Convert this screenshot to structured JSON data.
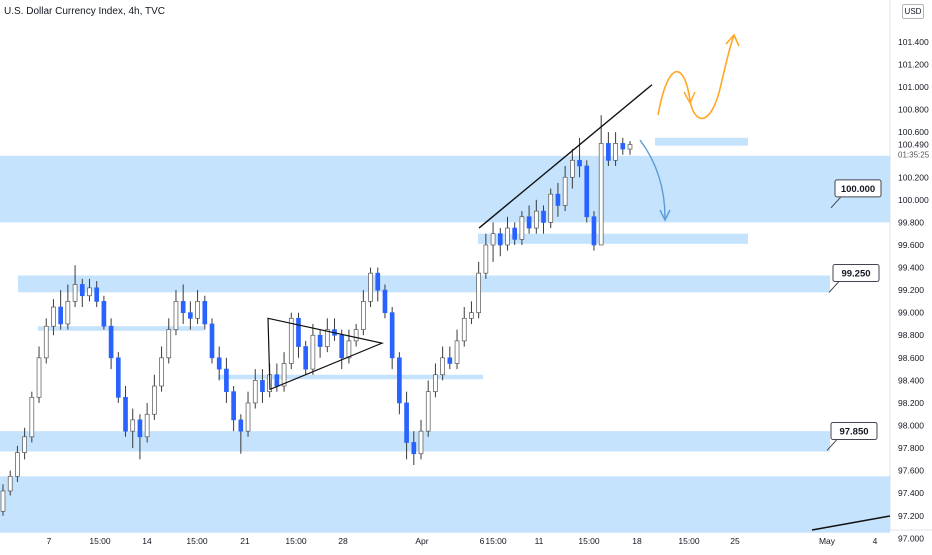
{
  "header": {
    "title": "U.S. Dollar Currency Index, 4h, TVC"
  },
  "currency_button": "USD",
  "price_box": {
    "price": "100.490",
    "countdown": "01:35:25"
  },
  "colors": {
    "up": "#26a69a",
    "down": "#2962ff",
    "candle_fill_up": "#ffffff",
    "zone_fill": "#bbdefb",
    "accent_orange": "#ffa726",
    "accent_blue": "#5b9bd5",
    "axis_text": "#131722"
  },
  "annotations": [
    {
      "label": "100.000",
      "price": 100.0
    },
    {
      "label": "99.250",
      "price": 99.25
    },
    {
      "label": "97.850",
      "price": 97.85
    }
  ],
  "chart_data": {
    "type": "candlestick",
    "title": "U.S. Dollar Currency Index, 4h, TVC",
    "y_ticks": [
      "97.000",
      "97.200",
      "97.400",
      "97.600",
      "97.800",
      "98.000",
      "98.200",
      "98.400",
      "98.600",
      "98.800",
      "99.000",
      "99.200",
      "99.400",
      "99.600",
      "99.800",
      "100.000",
      "100.200",
      "100.400",
      "100.600",
      "100.800",
      "101.000",
      "101.200",
      "101.400"
    ],
    "x_ticks": [
      "7",
      "15:00",
      "14",
      "15:00",
      "21",
      "15:00",
      "28",
      "Apr",
      "6",
      "15:00",
      "11",
      "15:00",
      "18",
      "15:00",
      "25",
      "May",
      "4"
    ],
    "ylim": [
      96.95,
      101.7
    ],
    "last_price": 100.49,
    "zones": [
      {
        "low": 99.8,
        "high": 100.39
      },
      {
        "low": 99.18,
        "high": 99.33
      },
      {
        "low": 97.77,
        "high": 97.95
      },
      {
        "low": 97.05,
        "high": 97.55
      },
      {
        "low": 100.48,
        "high": 100.55
      },
      {
        "low": 99.61,
        "high": 99.7
      },
      {
        "low": 98.84,
        "high": 98.88
      },
      {
        "low": 98.41,
        "high": 98.45
      }
    ],
    "candles": [
      [
        97.24,
        97.42,
        97.2,
        97.48
      ],
      [
        97.42,
        97.55,
        97.38,
        97.6
      ],
      [
        97.55,
        97.76,
        97.5,
        97.82
      ],
      [
        97.76,
        97.9,
        97.7,
        97.98
      ],
      [
        97.9,
        98.25,
        97.85,
        98.3
      ],
      [
        98.25,
        98.6,
        98.2,
        98.7
      ],
      [
        98.6,
        98.88,
        98.55,
        98.95
      ],
      [
        98.88,
        99.05,
        98.8,
        99.12
      ],
      [
        99.05,
        98.9,
        98.85,
        99.2
      ],
      [
        98.9,
        99.1,
        98.85,
        99.25
      ],
      [
        99.1,
        99.25,
        99.05,
        99.42
      ],
      [
        99.25,
        99.15,
        99.05,
        99.3
      ],
      [
        99.15,
        99.22,
        99.1,
        99.3
      ],
      [
        99.22,
        99.1,
        99.05,
        99.28
      ],
      [
        99.1,
        98.88,
        98.85,
        99.15
      ],
      [
        98.88,
        98.6,
        98.5,
        98.95
      ],
      [
        98.6,
        98.25,
        98.2,
        98.65
      ],
      [
        98.25,
        97.95,
        97.9,
        98.35
      ],
      [
        97.95,
        98.05,
        97.8,
        98.15
      ],
      [
        98.05,
        97.9,
        97.7,
        98.1
      ],
      [
        97.9,
        98.1,
        97.85,
        98.2
      ],
      [
        98.1,
        98.35,
        98.05,
        98.45
      ],
      [
        98.35,
        98.6,
        98.3,
        98.7
      ],
      [
        98.6,
        98.85,
        98.55,
        98.95
      ],
      [
        98.85,
        99.1,
        98.8,
        99.2
      ],
      [
        99.1,
        99.0,
        98.9,
        99.25
      ],
      [
        99.0,
        98.95,
        98.85,
        99.1
      ],
      [
        98.95,
        99.1,
        98.9,
        99.2
      ],
      [
        99.1,
        98.9,
        98.85,
        99.15
      ],
      [
        98.9,
        98.6,
        98.55,
        98.95
      ],
      [
        98.6,
        98.5,
        98.4,
        98.7
      ],
      [
        98.5,
        98.3,
        98.2,
        98.6
      ],
      [
        98.3,
        98.05,
        97.95,
        98.35
      ],
      [
        98.05,
        97.95,
        97.75,
        98.1
      ],
      [
        97.95,
        98.2,
        97.9,
        98.3
      ],
      [
        98.2,
        98.4,
        98.15,
        98.5
      ],
      [
        98.4,
        98.3,
        98.2,
        98.5
      ],
      [
        98.3,
        98.45,
        98.25,
        98.55
      ],
      [
        98.45,
        98.35,
        98.3,
        98.55
      ],
      [
        98.35,
        98.55,
        98.3,
        98.65
      ],
      [
        98.55,
        98.95,
        98.5,
        99.0
      ],
      [
        98.95,
        98.7,
        98.6,
        99.0
      ],
      [
        98.7,
        98.5,
        98.45,
        98.75
      ],
      [
        98.5,
        98.8,
        98.45,
        98.9
      ],
      [
        98.8,
        98.7,
        98.6,
        98.85
      ],
      [
        98.7,
        98.85,
        98.65,
        98.95
      ],
      [
        98.85,
        98.8,
        98.75,
        98.95
      ],
      [
        98.8,
        98.6,
        98.5,
        98.85
      ],
      [
        98.6,
        98.75,
        98.55,
        98.85
      ],
      [
        98.75,
        98.85,
        98.7,
        98.9
      ],
      [
        98.85,
        99.1,
        98.8,
        99.2
      ],
      [
        99.1,
        99.35,
        99.05,
        99.4
      ],
      [
        99.35,
        99.2,
        99.1,
        99.4
      ],
      [
        99.2,
        99.0,
        98.95,
        99.25
      ],
      [
        99.0,
        98.6,
        98.5,
        99.05
      ],
      [
        98.6,
        98.2,
        98.1,
        98.65
      ],
      [
        98.2,
        97.85,
        97.7,
        98.3
      ],
      [
        97.85,
        97.75,
        97.65,
        97.95
      ],
      [
        97.75,
        97.95,
        97.7,
        98.05
      ],
      [
        97.95,
        98.3,
        97.9,
        98.4
      ],
      [
        98.3,
        98.45,
        98.25,
        98.55
      ],
      [
        98.45,
        98.6,
        98.4,
        98.7
      ],
      [
        98.6,
        98.55,
        98.5,
        98.7
      ],
      [
        98.55,
        98.75,
        98.5,
        98.85
      ],
      [
        98.75,
        98.95,
        98.7,
        99.05
      ],
      [
        98.95,
        99.0,
        98.9,
        99.1
      ],
      [
        99.0,
        99.35,
        98.95,
        99.45
      ],
      [
        99.35,
        99.6,
        99.3,
        99.7
      ],
      [
        99.6,
        99.7,
        99.45,
        99.8
      ],
      [
        99.7,
        99.6,
        99.5,
        99.75
      ],
      [
        99.6,
        99.75,
        99.55,
        99.85
      ],
      [
        99.75,
        99.65,
        99.6,
        99.8
      ],
      [
        99.65,
        99.85,
        99.6,
        99.9
      ],
      [
        99.85,
        99.75,
        99.7,
        99.95
      ],
      [
        99.75,
        99.9,
        99.7,
        100.0
      ],
      [
        99.9,
        99.8,
        99.7,
        99.95
      ],
      [
        99.8,
        100.05,
        99.75,
        100.1
      ],
      [
        100.05,
        99.95,
        99.85,
        100.15
      ],
      [
        99.95,
        100.2,
        99.9,
        100.3
      ],
      [
        100.2,
        100.35,
        100.1,
        100.45
      ],
      [
        100.35,
        100.3,
        100.2,
        100.55
      ],
      [
        100.3,
        99.85,
        99.8,
        100.35
      ],
      [
        99.85,
        99.6,
        99.55,
        99.9
      ],
      [
        99.6,
        100.5,
        99.6,
        100.75
      ],
      [
        100.5,
        100.35,
        100.3,
        100.6
      ],
      [
        100.35,
        100.5,
        100.3,
        100.6
      ],
      [
        100.5,
        100.45,
        100.4,
        100.55
      ],
      [
        100.45,
        100.49,
        100.4,
        100.52
      ]
    ]
  }
}
